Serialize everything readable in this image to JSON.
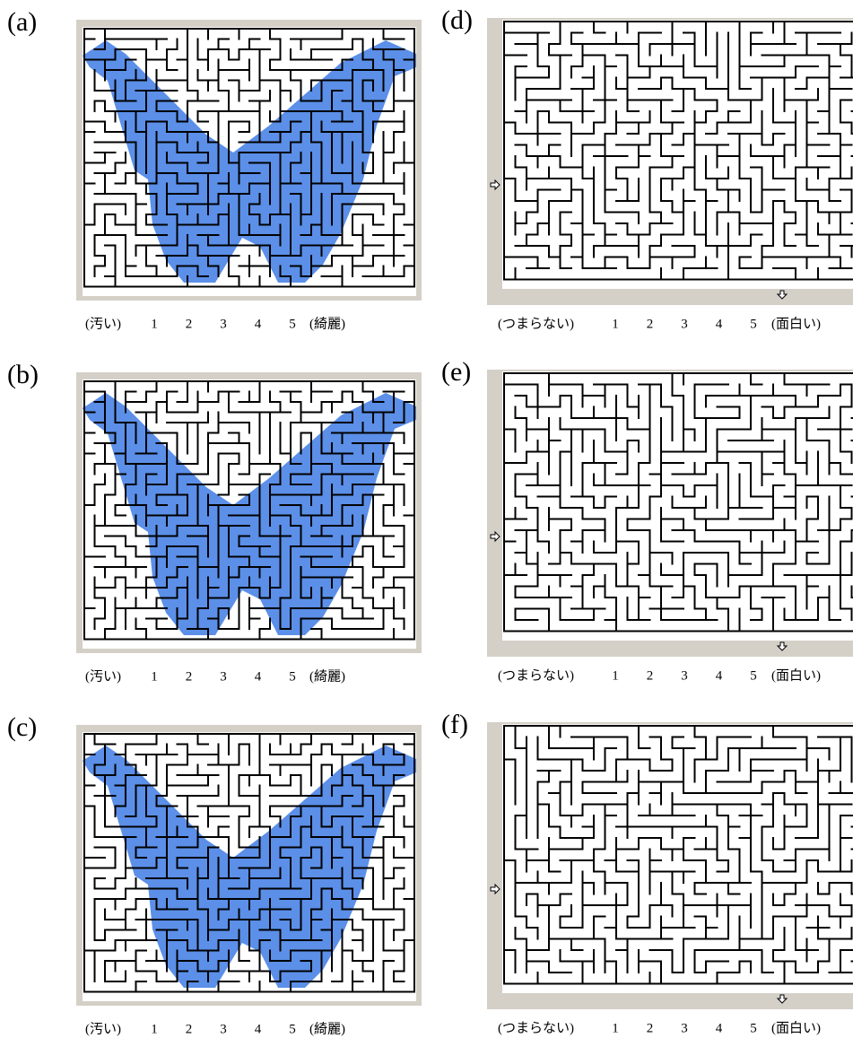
{
  "panels": [
    {
      "label": "(a)",
      "scale_left": "(汚い)",
      "scale": [
        1,
        2,
        3,
        4,
        5
      ],
      "scale_right": "(綺麗)"
    },
    {
      "label": "(b)",
      "scale_left": "(汚い)",
      "scale": [
        1,
        2,
        3,
        4,
        5
      ],
      "scale_right": "(綺麗)"
    },
    {
      "label": "(c)",
      "scale_left": "(汚い)",
      "scale": [
        1,
        2,
        3,
        4,
        5
      ],
      "scale_right": "(綺麗)"
    },
    {
      "label": "(d)",
      "scale_left": "(つまらない)",
      "scale": [
        1,
        2,
        3,
        4,
        5
      ],
      "scale_right": "(面白い)"
    },
    {
      "label": "(e)",
      "scale_left": "(つまらない)",
      "scale": [
        1,
        2,
        3,
        4,
        5
      ],
      "scale_right": "(面白い)"
    },
    {
      "label": "(f)",
      "scale_left": "(つまらない)",
      "scale": [
        1,
        2,
        3,
        4,
        5
      ],
      "scale_right": "(面白い)"
    }
  ]
}
